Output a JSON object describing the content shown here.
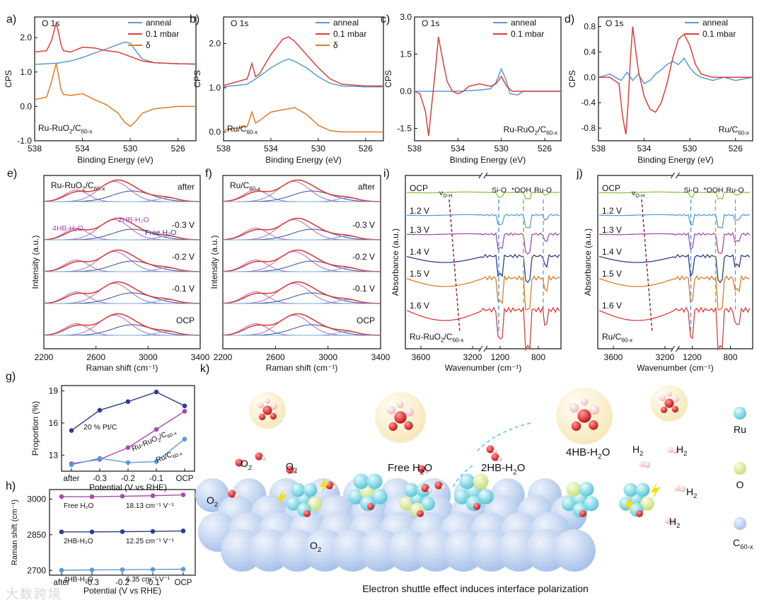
{
  "colors": {
    "blue": "#5b9bd5",
    "red": "#d9403c",
    "orange": "#e07b2a",
    "purple": "#a84ab0",
    "navy": "#2f3d8e",
    "green": "#7ac143",
    "lgreen": "#8cc63f",
    "fitpurple": "#b06ab6",
    "fitblue": "#6fa8dc",
    "fitnavy": "#3b4a9b",
    "lightblue": "#6cb4e4",
    "sphere": "#a9c3ea",
    "ru": "#5cc6d6",
    "o": "#c8e07a",
    "h2o_o": "#d81f26",
    "h2o_h": "#f3c3c3"
  },
  "watermark": "大数跨境",
  "chart_data": [
    {
      "id": "a",
      "type": "line",
      "panel_label": "a)",
      "title": "O 1s",
      "xlabel": "Binding Energy (eV)",
      "ylabel": "CPS",
      "xlim": [
        538,
        524.5
      ],
      "ylim": [
        -1.0,
        2.6
      ],
      "xticks": [
        538,
        534,
        530,
        526
      ],
      "yticks": [
        -1.0,
        0.0,
        1.0,
        2.0
      ],
      "ytick_labels": [
        "-1.0",
        "0.0",
        "1.0",
        "2.0"
      ],
      "legend": [
        "anneal",
        "0.1 mbar",
        "δ"
      ],
      "sample": "Ru-RuO2/C60-x",
      "sample_main": "Ru-RuO",
      "sample_sub1": "2",
      "sample_mid": "/C",
      "sample_sub2": "60-x",
      "series": [
        {
          "name": "anneal",
          "color": "#5b9bd5",
          "x": [
            538,
            536,
            535,
            534,
            533,
            532,
            531,
            530.5,
            530,
            529.5,
            529,
            528,
            526,
            524.5
          ],
          "y": [
            1.22,
            1.26,
            1.32,
            1.42,
            1.55,
            1.67,
            1.8,
            1.87,
            1.84,
            1.6,
            1.38,
            1.27,
            1.24,
            1.23
          ]
        },
        {
          "name": "0.1 mbar",
          "color": "#d9403c",
          "x": [
            538,
            537,
            536.6,
            536.2,
            536,
            535.8,
            535.6,
            535,
            534,
            533,
            532,
            531,
            530,
            529,
            528,
            526,
            524.5
          ],
          "y": [
            1.58,
            1.62,
            1.9,
            2.42,
            2.15,
            1.8,
            1.62,
            1.58,
            1.72,
            1.7,
            1.62,
            1.58,
            1.45,
            1.32,
            1.27,
            1.24,
            1.23
          ]
        },
        {
          "name": "δ",
          "color": "#e07b2a",
          "x": [
            538,
            537,
            536.6,
            536.2,
            536,
            535.8,
            535.6,
            535,
            534,
            533,
            532,
            531,
            530.5,
            530,
            529.5,
            529,
            528,
            526,
            524.5
          ],
          "y": [
            0.2,
            0.27,
            0.7,
            1.25,
            0.9,
            0.5,
            0.35,
            0.32,
            0.37,
            0.2,
            0.05,
            -0.2,
            -0.45,
            -0.58,
            -0.42,
            -0.2,
            -0.07,
            0.0,
            0.0
          ]
        }
      ]
    },
    {
      "id": "b",
      "type": "line",
      "panel_label": "b)",
      "title": "O 1s",
      "xlabel": "Binding Energy (eV)",
      "ylabel": "CPS",
      "xlim": [
        538,
        524.5
      ],
      "ylim": [
        -0.2,
        2.6
      ],
      "xticks": [
        538,
        534,
        530,
        526
      ],
      "yticks": [
        0.0,
        1.0,
        2.0
      ],
      "ytick_labels": [
        "0.0",
        "1.0",
        "2.0"
      ],
      "legend": [
        "anneal",
        "0.1 mbar",
        "δ"
      ],
      "sample": "Ru/C60-x",
      "sample_main": "Ru/C",
      "sample_sub2": "60-x",
      "series": [
        {
          "name": "anneal",
          "color": "#5b9bd5",
          "x": [
            538,
            536,
            535,
            534,
            533,
            532.5,
            532,
            531,
            530,
            529,
            528,
            526,
            524.5
          ],
          "y": [
            1.02,
            1.08,
            1.25,
            1.45,
            1.6,
            1.65,
            1.6,
            1.45,
            1.25,
            1.1,
            1.04,
            1.02,
            1.02
          ]
        },
        {
          "name": "0.1 mbar",
          "color": "#d9403c",
          "x": [
            538,
            536,
            535.6,
            535.3,
            535,
            534,
            533,
            532.5,
            532,
            531,
            530,
            529,
            528,
            526,
            524.5
          ],
          "y": [
            1.05,
            1.2,
            1.55,
            1.25,
            1.3,
            1.75,
            2.1,
            2.15,
            2.05,
            1.75,
            1.45,
            1.2,
            1.08,
            1.04,
            1.04
          ]
        },
        {
          "name": "δ",
          "color": "#e07b2a",
          "x": [
            538,
            536,
            535.6,
            535.3,
            535,
            534,
            533,
            532,
            531,
            530,
            529,
            528,
            526,
            524.5
          ],
          "y": [
            0.04,
            0.12,
            0.45,
            0.2,
            0.25,
            0.45,
            0.5,
            0.55,
            0.4,
            0.15,
            0.03,
            0.0,
            0.0,
            0.0
          ]
        }
      ]
    },
    {
      "id": "c",
      "type": "line",
      "panel_label": "c)",
      "title": "O 1s",
      "xlabel": "Binding Energy (eV)",
      "ylabel": "CPS",
      "xlim": [
        538,
        524.5
      ],
      "ylim": [
        -2.0,
        3.0
      ],
      "xticks": [
        538,
        534,
        530,
        526
      ],
      "yticks": [
        -1.5,
        0.0,
        1.5,
        3.0
      ],
      "ytick_labels": [
        "-1.5",
        "0.0",
        "1.5",
        "3.0"
      ],
      "legend": [
        "anneal",
        "0.1 mbar"
      ],
      "sample": "Ru-RuO2/C60-x",
      "sample_main": "Ru-RuO",
      "sample_sub1": "2",
      "sample_mid": "/C",
      "sample_sub2": "60-x",
      "series": [
        {
          "name": "anneal",
          "color": "#5b9bd5",
          "x": [
            538,
            536,
            534,
            532,
            531,
            530.5,
            530,
            529.6,
            529.2,
            528.5,
            528,
            526,
            524.5
          ],
          "y": [
            0,
            0,
            0,
            0.05,
            0.1,
            0.35,
            0.9,
            0.5,
            -0.1,
            -0.15,
            0,
            0,
            0
          ]
        },
        {
          "name": "0.1 mbar",
          "color": "#d9403c",
          "x": [
            538,
            537.5,
            537,
            536.7,
            536.4,
            536,
            535.8,
            535.5,
            535,
            534.5,
            534,
            533.5,
            533,
            532,
            531,
            530.5,
            530,
            529.5,
            529,
            528,
            526,
            524.5
          ],
          "y": [
            0,
            -0.1,
            -0.8,
            -1.8,
            -0.5,
            1.2,
            2.2,
            1.5,
            0.4,
            0.0,
            -0.1,
            0.0,
            0.2,
            0.3,
            0.2,
            0.3,
            0.6,
            0.2,
            0.0,
            0.0,
            0,
            0
          ]
        }
      ]
    },
    {
      "id": "d",
      "type": "line",
      "panel_label": "d)",
      "title": "O 1s",
      "xlabel": "Binding Energy (eV)",
      "ylabel": "CPS",
      "xlim": [
        538,
        524.5
      ],
      "ylim": [
        -1.0,
        0.95
      ],
      "xticks": [
        538,
        534,
        530,
        526
      ],
      "yticks": [
        -0.8,
        -0.4,
        0.0,
        0.4,
        0.8
      ],
      "ytick_labels": [
        "-0.8",
        "-0.4",
        "0.0",
        "0.4",
        "0.8"
      ],
      "legend": [
        "anneal",
        "0.1 mbar"
      ],
      "sample": "Ru/C60-x",
      "sample_main": "Ru/C",
      "sample_sub2": "60-x",
      "series": [
        {
          "name": "anneal",
          "color": "#5b9bd5",
          "x": [
            538,
            537,
            536,
            535.5,
            535,
            534.5,
            534,
            533.5,
            533,
            532.5,
            532,
            531.5,
            531,
            530.5,
            530,
            529.5,
            529,
            528,
            527,
            526,
            524.5
          ],
          "y": [
            0.0,
            0.05,
            -0.05,
            0.08,
            -0.05,
            0.05,
            -0.1,
            -0.05,
            0.05,
            0.12,
            0.2,
            0.25,
            0.2,
            0.3,
            0.15,
            0.05,
            0.0,
            -0.05,
            0.0,
            -0.05,
            0.0
          ]
        },
        {
          "name": "0.1 mbar",
          "color": "#d9403c",
          "x": [
            538,
            537,
            536.2,
            535.9,
            535.6,
            535.4,
            535.2,
            535,
            534.8,
            534.5,
            534,
            533.5,
            533,
            532.5,
            532,
            531.5,
            531,
            530.5,
            530,
            529.5,
            529,
            528,
            527,
            526,
            524.5
          ],
          "y": [
            0,
            0,
            -0.1,
            -0.6,
            -0.9,
            -0.4,
            0.3,
            0.8,
            0.5,
            0.1,
            -0.3,
            -0.5,
            -0.55,
            -0.4,
            -0.1,
            0.3,
            0.6,
            0.68,
            0.5,
            0.2,
            0.05,
            0,
            0,
            0,
            0
          ]
        }
      ]
    }
  ],
  "panel_e": {
    "label": "e)",
    "sample_main": "Ru-RuO",
    "sample_sub1": "2",
    "sample_mid": "/C",
    "sample_sub2": "60-x",
    "xlabel": "Raman shift (cm⁻¹)",
    "ylabel": "Intensity (a.u.)",
    "xticks": [
      "2200",
      "2600",
      "3000",
      "3400"
    ],
    "rows": [
      "after",
      "-0.3 V",
      "-0.2 V",
      "-0.1 V",
      "OCP"
    ],
    "peak_labels": {
      "p4hb": "4HB-H₂O",
      "p2hb": "2HB-H₂O",
      "free": "Free H₂O"
    }
  },
  "panel_f": {
    "label": "f)",
    "sample_main": "Ru/C",
    "sample_sub2": "60-x",
    "xlabel": "Raman shift (cm⁻¹)",
    "ylabel": "Intensity (a.u.)",
    "xticks": [
      "2200",
      "2600",
      "3000",
      "3400"
    ],
    "rows": [
      "after",
      "-0.3 V",
      "-0.2 V",
      "-0.1 V",
      "OCP"
    ]
  },
  "panel_i": {
    "label": "i)",
    "sample_main": "Ru-RuO",
    "sample_sub1": "2",
    "sample_mid": "/C",
    "sample_sub2": "60-x",
    "xlabel": "Wavenumber (cm⁻¹)",
    "ylabel": "Absorbance (a.u.)",
    "xticks": [
      "3600",
      "3200",
      "1200",
      "800"
    ],
    "rows": [
      "OCP",
      "1.2 V",
      "1.3 V",
      "1.4 V",
      "1.5 V",
      "1.6 V"
    ],
    "markers": {
      "voh": "ν",
      "voh_sub": "O-H",
      "sio": "Si-O",
      "ooh": "*OOH",
      "ruo": "Ru-O"
    }
  },
  "panel_j": {
    "label": "j)",
    "sample_main": "Ru/C",
    "sample_sub2": "60-x",
    "xlabel": "Wavenumber (cm⁻¹)",
    "ylabel": "Absorbance (a.u.)",
    "xticks": [
      "3600",
      "3200",
      "1200",
      "800"
    ],
    "rows": [
      "OCP",
      "1.2 V",
      "1.3 V",
      "1.4 V",
      "1.5 V",
      "1.6 V"
    ]
  },
  "panel_g": {
    "label": "g)",
    "type": "line",
    "xlabel": "Potential (V vs RHE)",
    "ylabel": "Proportion (%)",
    "categories": [
      "after",
      "-0.3",
      "-0.2",
      "-0.1",
      "OCP"
    ],
    "ylim": [
      11.5,
      19.5
    ],
    "yticks": [
      "13",
      "16",
      "19"
    ],
    "series": [
      {
        "name": "20 % Pt/C",
        "color": "#2f3d8e",
        "values": [
          15.3,
          17.2,
          18.0,
          18.9,
          17.6
        ]
      },
      {
        "name": "Ru-RuO2/C60-x",
        "color": "#a84ab0",
        "values": [
          12.2,
          12.6,
          13.7,
          15.4,
          17.1
        ]
      },
      {
        "name": "Ru/C60-x",
        "color": "#5b9bd5",
        "values": [
          12.1,
          12.7,
          12.3,
          12.4,
          14.5
        ]
      }
    ],
    "label_pt": "20 % Pt/C",
    "label_ruo_main": "Ru-RuO",
    "label_ruo_sub1": "2",
    "label_ruo_mid": "/C",
    "label_ruo_sub2": "60-x",
    "label_ru_main": "Ru/C",
    "label_ru_sub2": "60-x"
  },
  "panel_h": {
    "label": "h)",
    "type": "line",
    "xlabel": "Potential (V vs RHE)",
    "ylabel": "Raman shift (cm⁻¹)",
    "categories": [
      "after",
      "-0.3",
      "-0.2",
      "-0.1",
      "OCP"
    ],
    "ylim": [
      2680,
      3040
    ],
    "yticks": [
      "2700",
      "2850",
      "3000"
    ],
    "series": [
      {
        "name": "Free H₂O",
        "color": "#a84ab0",
        "values": [
          3010,
          3010,
          3012,
          3014,
          3018
        ],
        "slope": "18.13 cm⁻¹ V⁻¹"
      },
      {
        "name": "2HB-H₂O",
        "color": "#2f3d8e",
        "values": [
          2862,
          2862,
          2863,
          2864,
          2866
        ],
        "slope": "12.25 cm⁻¹ V⁻¹"
      },
      {
        "name": "4HB-H₂O",
        "color": "#5b9bd5",
        "values": [
          2701,
          2702,
          2703,
          2704,
          2705
        ],
        "slope": "6.35 cm⁻¹ V⁻¹"
      }
    ]
  },
  "panel_k": {
    "label": "k)",
    "caption": "Electron shuttle effect induces interface polarization",
    "labels": {
      "free": "Free H₂O",
      "hb2": "2HB-H₂O",
      "hb4": "4HB-H₂O",
      "o2": "O",
      "o2_sub": "2",
      "h2": "H",
      "h2_sub": "2"
    },
    "legend": [
      {
        "name": "Ru",
        "color": "#5cc6d6"
      },
      {
        "name": "O",
        "color": "#c8e07a"
      },
      {
        "name": "C60-x",
        "main": "C",
        "sub": "60-x",
        "color": "#a9c3ea"
      }
    ]
  }
}
